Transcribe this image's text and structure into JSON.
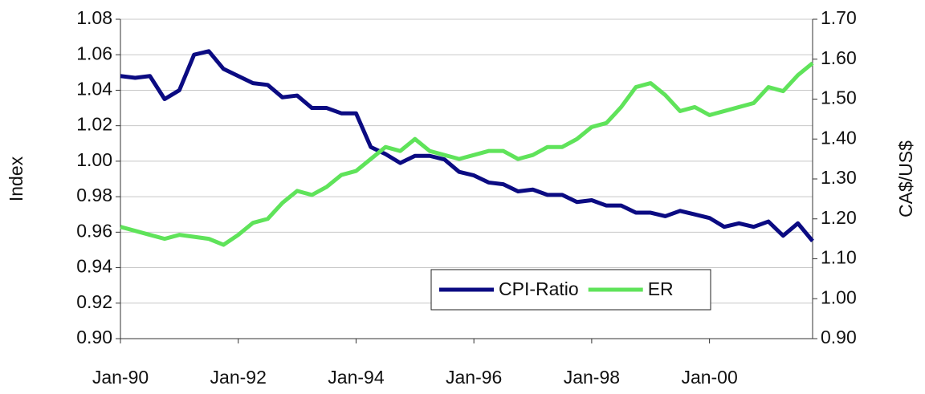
{
  "chart_data": {
    "type": "line",
    "ylabel": "Index",
    "y2label": "CA$/US$",
    "categories": [
      "Jan-90",
      null,
      null,
      null,
      null,
      null,
      null,
      null,
      "Jan-92",
      null,
      null,
      null,
      null,
      null,
      null,
      null,
      "Jan-94",
      null,
      null,
      null,
      null,
      null,
      null,
      null,
      "Jan-96",
      null,
      null,
      null,
      null,
      null,
      null,
      null,
      "Jan-98",
      null,
      null,
      null,
      null,
      null,
      null,
      null,
      "Jan-00",
      null,
      null,
      null,
      null,
      null,
      null,
      null
    ],
    "series": [
      {
        "name": "CPI-Ratio",
        "color": "#0b0b82",
        "axis": "y",
        "values": [
          1.048,
          1.047,
          1.048,
          1.035,
          1.04,
          1.06,
          1.062,
          1.052,
          1.048,
          1.044,
          1.043,
          1.036,
          1.037,
          1.03,
          1.03,
          1.027,
          1.027,
          1.008,
          1.004,
          0.999,
          1.003,
          1.003,
          1.001,
          0.994,
          0.992,
          0.988,
          0.987,
          0.983,
          0.984,
          0.981,
          0.981,
          0.977,
          0.978,
          0.975,
          0.975,
          0.971,
          0.971,
          0.969,
          0.972,
          0.97,
          0.968,
          0.963,
          0.965,
          0.963,
          0.966,
          0.958,
          0.965,
          0.955
        ]
      },
      {
        "name": "ER",
        "color": "#5fe35a",
        "axis": "y2",
        "values": [
          1.18,
          1.17,
          1.16,
          1.15,
          1.16,
          1.155,
          1.15,
          1.135,
          1.16,
          1.19,
          1.2,
          1.24,
          1.27,
          1.26,
          1.28,
          1.31,
          1.32,
          1.35,
          1.38,
          1.37,
          1.4,
          1.37,
          1.36,
          1.35,
          1.36,
          1.37,
          1.37,
          1.35,
          1.36,
          1.38,
          1.38,
          1.4,
          1.43,
          1.44,
          1.48,
          1.53,
          1.54,
          1.51,
          1.47,
          1.48,
          1.46,
          1.47,
          1.48,
          1.49,
          1.53,
          1.52,
          1.56,
          1.59
        ]
      }
    ],
    "ylim": [
      0.9,
      1.08
    ],
    "yticks": [
      {
        "value": 0.9,
        "label": "0.90"
      },
      {
        "value": 0.92,
        "label": "0.92"
      },
      {
        "value": 0.94,
        "label": "0.94"
      },
      {
        "value": 0.96,
        "label": "0.96"
      },
      {
        "value": 0.98,
        "label": "0.98"
      },
      {
        "value": 1.0,
        "label": "1.00"
      },
      {
        "value": 1.02,
        "label": "1.02"
      },
      {
        "value": 1.04,
        "label": "1.04"
      },
      {
        "value": 1.06,
        "label": "1.06"
      },
      {
        "value": 1.08,
        "label": "1.08"
      }
    ],
    "y2lim": [
      0.9,
      1.7
    ],
    "y2ticks": [
      {
        "value": 0.9,
        "label": "0.90"
      },
      {
        "value": 1.0,
        "label": "1.00"
      },
      {
        "value": 1.1,
        "label": "1.10"
      },
      {
        "value": 1.2,
        "label": "1.20"
      },
      {
        "value": 1.3,
        "label": "1.30"
      },
      {
        "value": 1.4,
        "label": "1.40"
      },
      {
        "value": 1.5,
        "label": "1.50"
      },
      {
        "value": 1.6,
        "label": "1.60"
      },
      {
        "value": 1.7,
        "label": "1.70"
      }
    ],
    "grid": true,
    "legend": "lower right"
  }
}
